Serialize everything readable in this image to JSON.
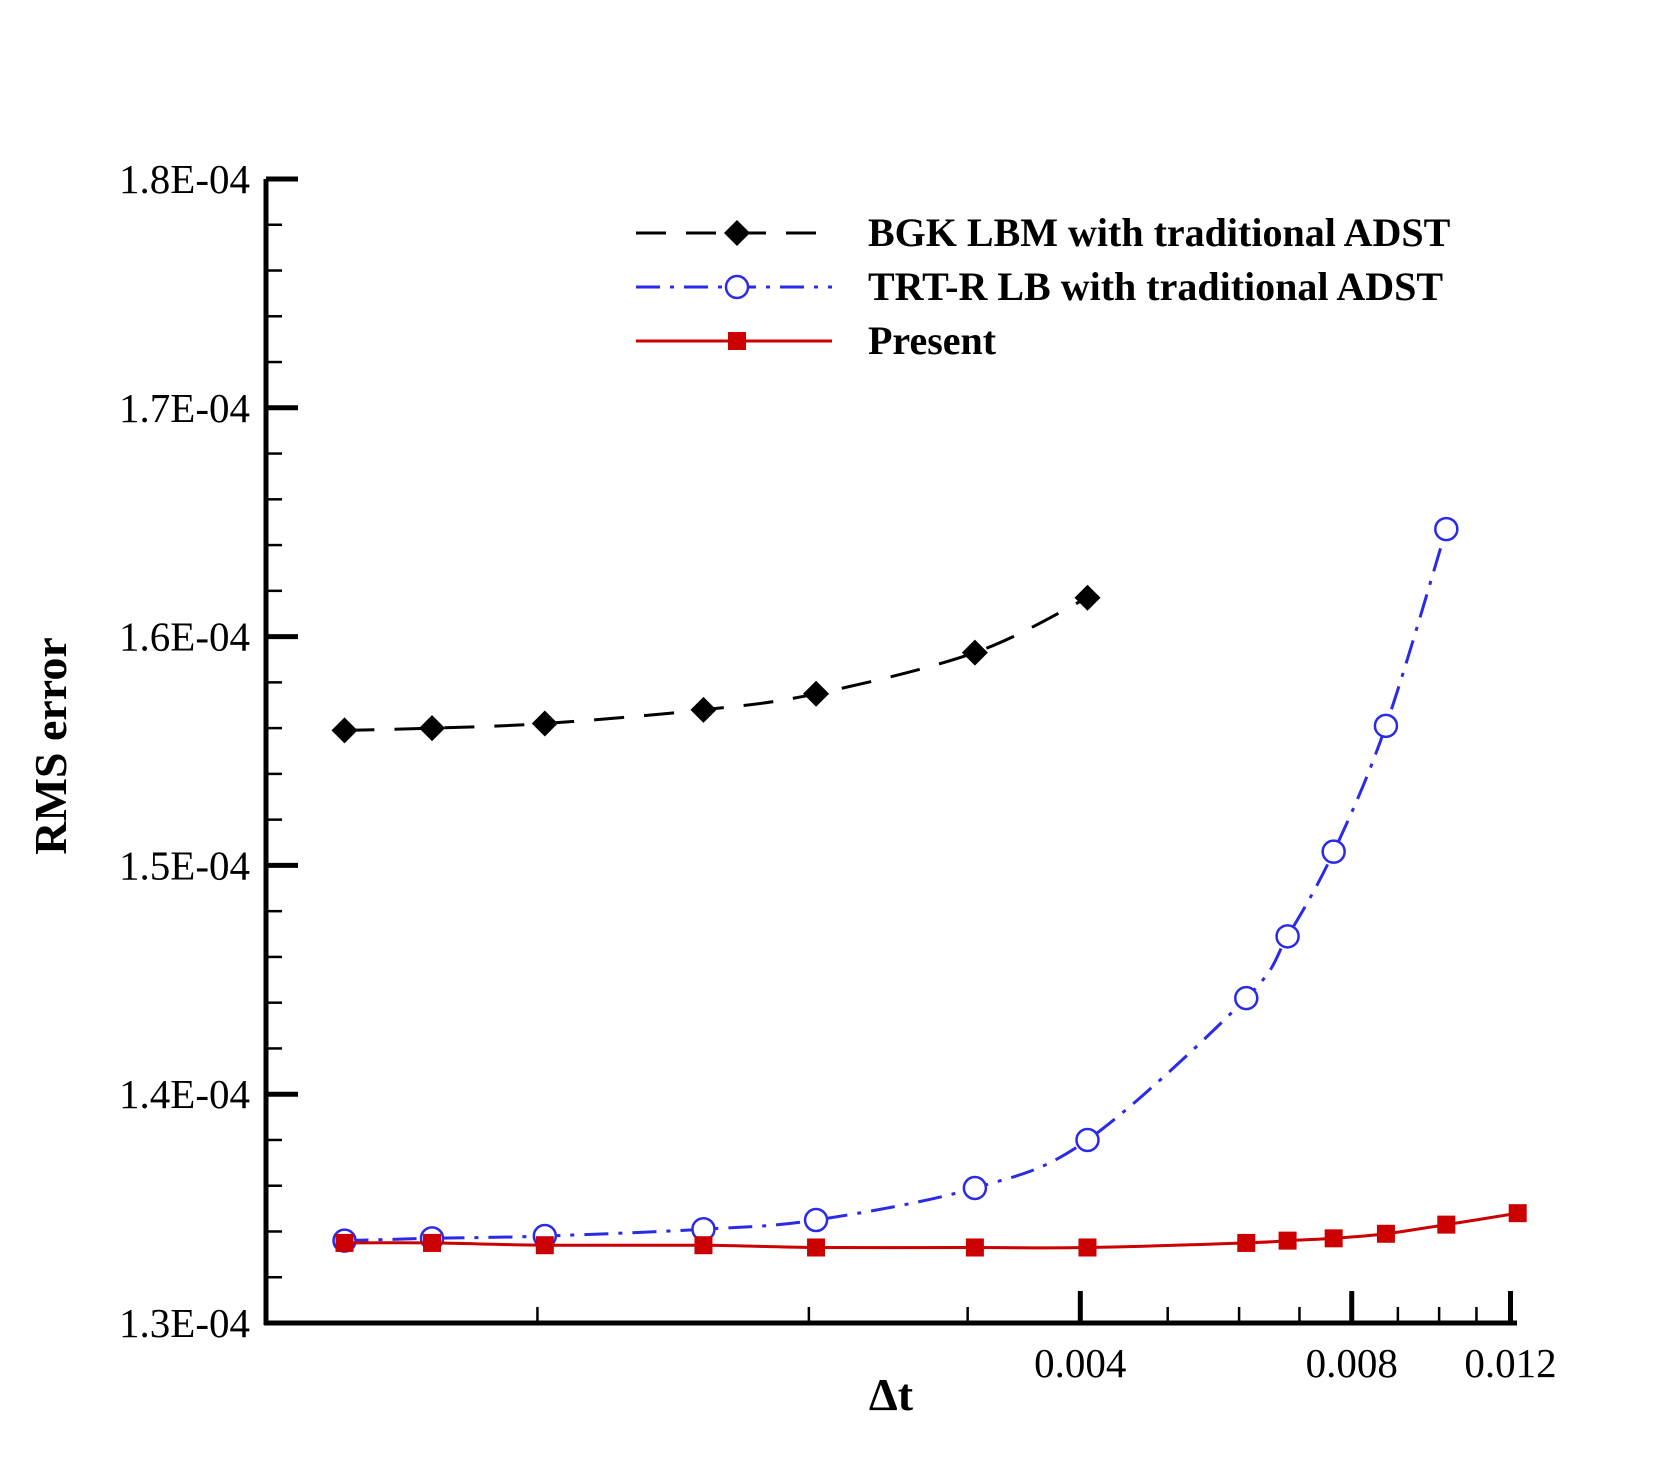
{
  "chart_data": {
    "type": "line",
    "title": "",
    "xlabel": "Δt",
    "ylabel": "RMS error",
    "xscale": "log",
    "xlim": [
      0.0005,
      0.0122
    ],
    "ylim": [
      0.00013,
      0.00018
    ],
    "x_major_ticks": [
      {
        "value": 0.004,
        "label": "0.004"
      },
      {
        "value": 0.008,
        "label": "0.008"
      },
      {
        "value": 0.012,
        "label": "0.012"
      }
    ],
    "x_minor_ticks": [
      0.001,
      0.002,
      0.003,
      0.005,
      0.006,
      0.007,
      0.009,
      0.01,
      0.011
    ],
    "y_major_ticks": [
      {
        "value": 0.00013,
        "label": "1.3E-04"
      },
      {
        "value": 0.00014,
        "label": "1.4E-04"
      },
      {
        "value": 0.00015,
        "label": "1.5E-04"
      },
      {
        "value": 0.00016,
        "label": "1.6E-04"
      },
      {
        "value": 0.00017,
        "label": "1.7E-04"
      },
      {
        "value": 0.00018,
        "label": "1.8E-04"
      }
    ],
    "y_minor_step": 2e-06,
    "legend_position": "top-right",
    "series": [
      {
        "name": "BGK LBM with traditional ADST",
        "color": "#000000",
        "line_style": "dashed",
        "marker": "diamond-filled",
        "x": [
          0.000611,
          0.000764,
          0.001019,
          0.001528,
          0.002037,
          0.003056,
          0.004074
        ],
        "y": [
          0.0001559,
          0.000156,
          0.0001562,
          0.0001568,
          0.0001575,
          0.0001593,
          0.0001617
        ]
      },
      {
        "name": "TRT-R LB with traditional ADST",
        "color": "#2a2ae8",
        "line_style": "dash-dot",
        "marker": "circle-open",
        "x": [
          0.000611,
          0.000764,
          0.001019,
          0.001528,
          0.002037,
          0.003056,
          0.004074,
          0.006111,
          0.006791,
          0.007639,
          0.00873,
          0.010185
        ],
        "y": [
          0.0001336,
          0.0001337,
          0.0001338,
          0.0001341,
          0.0001345,
          0.0001359,
          0.000138,
          0.0001442,
          0.0001469,
          0.0001506,
          0.0001561,
          0.0001647
        ]
      },
      {
        "name": "Present",
        "color": "#cc0000",
        "line_style": "solid",
        "marker": "square-filled",
        "x": [
          0.000611,
          0.000764,
          0.001019,
          0.001528,
          0.002037,
          0.003056,
          0.004074,
          0.006111,
          0.006791,
          0.007639,
          0.00873,
          0.010185,
          0.012222
        ],
        "y": [
          0.0001335,
          0.0001335,
          0.0001334,
          0.0001334,
          0.0001333,
          0.0001333,
          0.0001333,
          0.0001335,
          0.0001336,
          0.0001337,
          0.0001339,
          0.0001343,
          0.0001348
        ]
      }
    ]
  }
}
